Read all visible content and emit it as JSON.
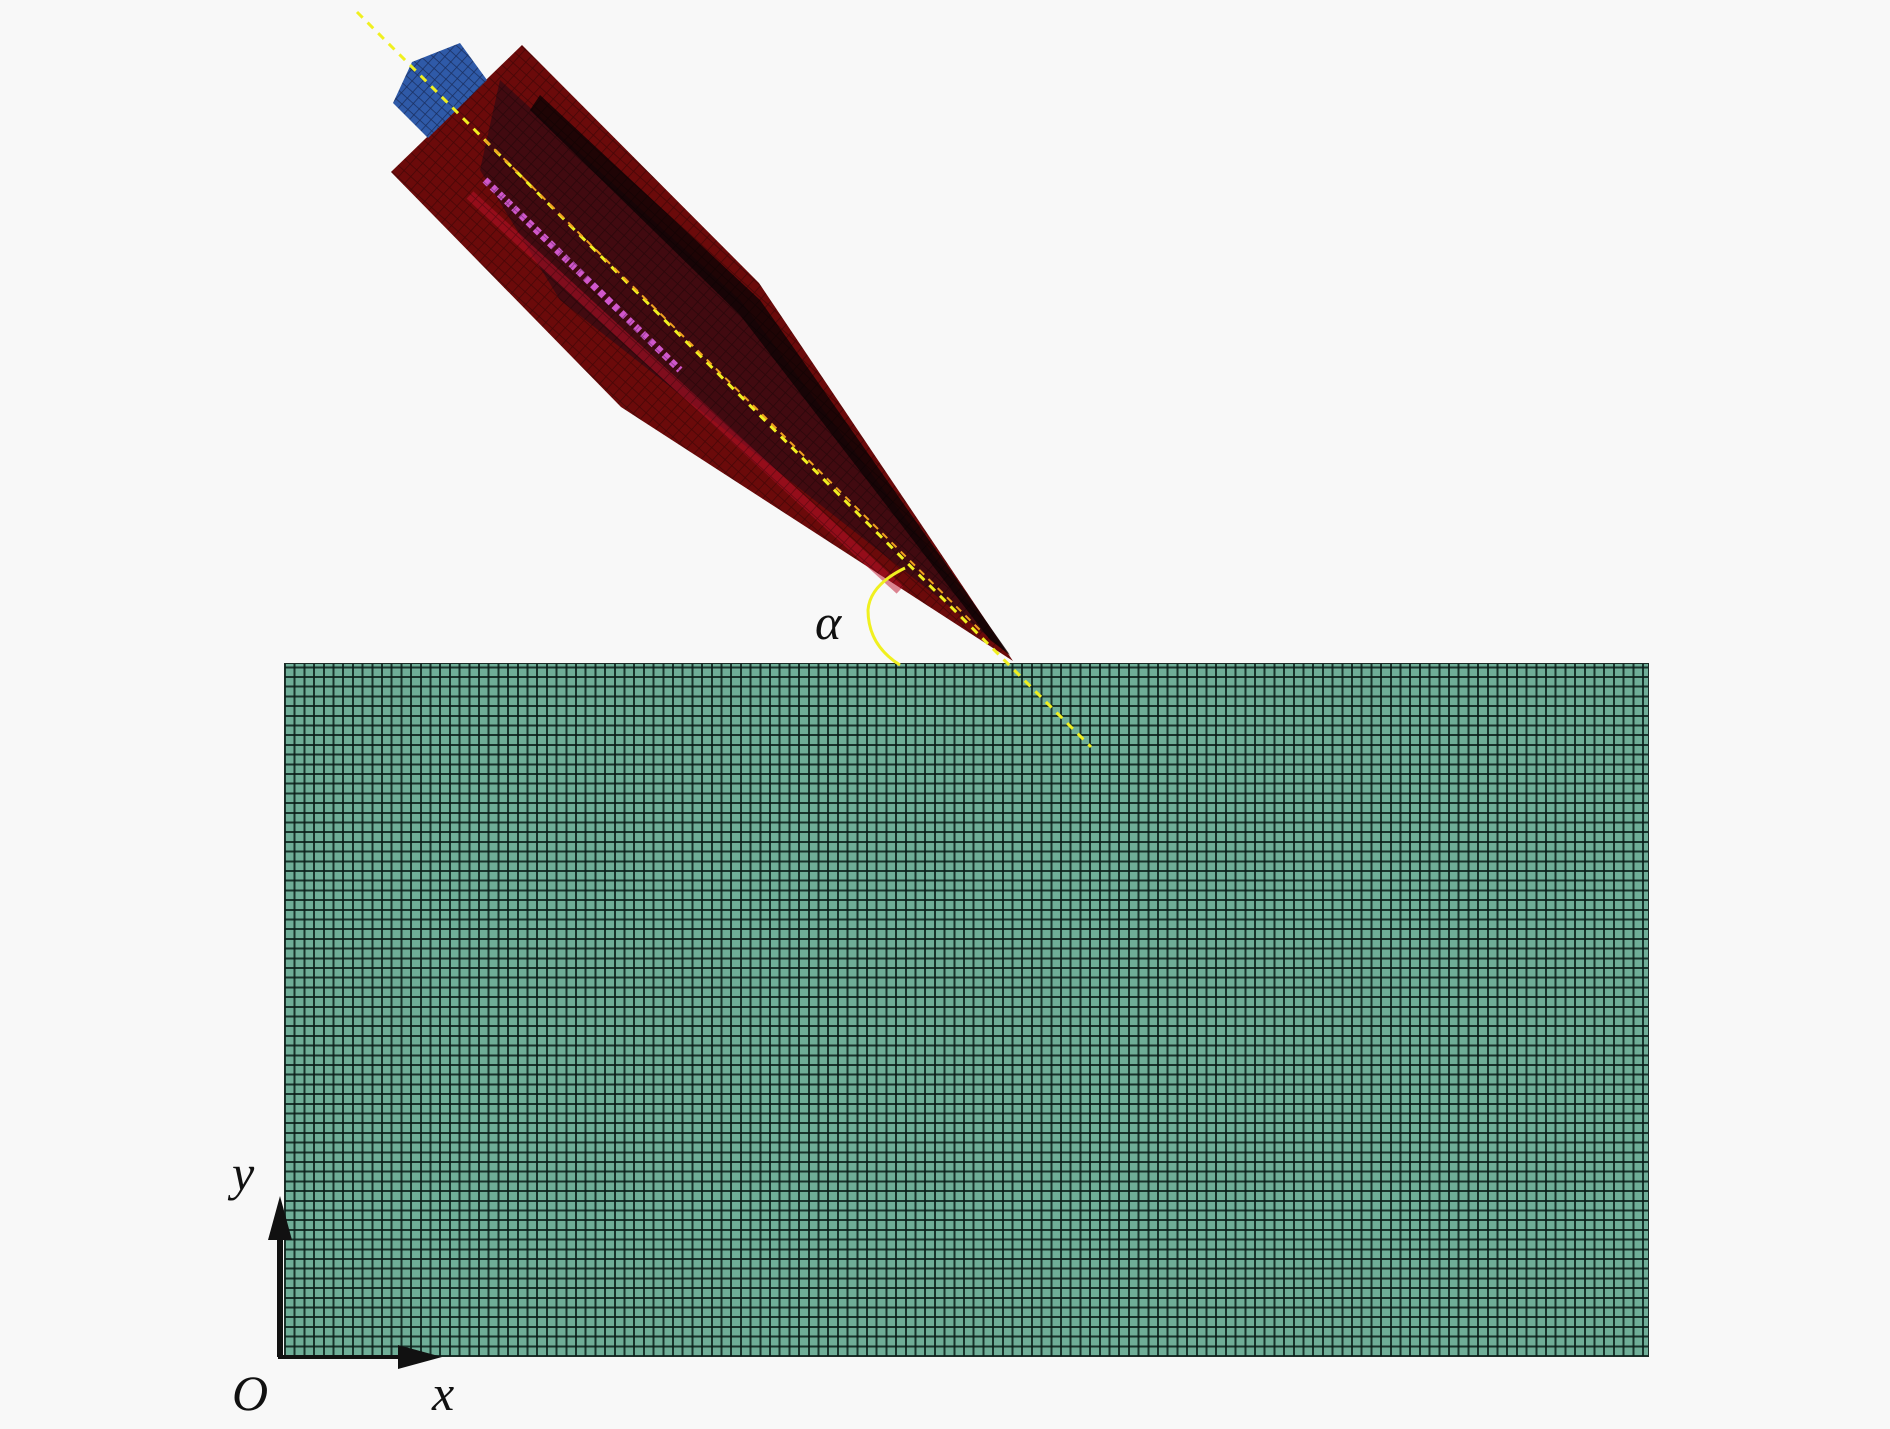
{
  "diagram": {
    "labels": {
      "angle": "α",
      "y_axis": "y",
      "x_axis": "x",
      "origin": "O"
    },
    "colors": {
      "target_mesh": "#6fae98",
      "mesh_lines": "#0a1e19",
      "projectile_body": "#6b0a0a",
      "projectile_core": "#3a0a12",
      "projectile_tail": "#2f5aa8",
      "projectile_highlight": "#e060e0",
      "axis_line": "#f0f020",
      "angle_arc": "#f0f020",
      "background": "#f8f8f8"
    }
  }
}
